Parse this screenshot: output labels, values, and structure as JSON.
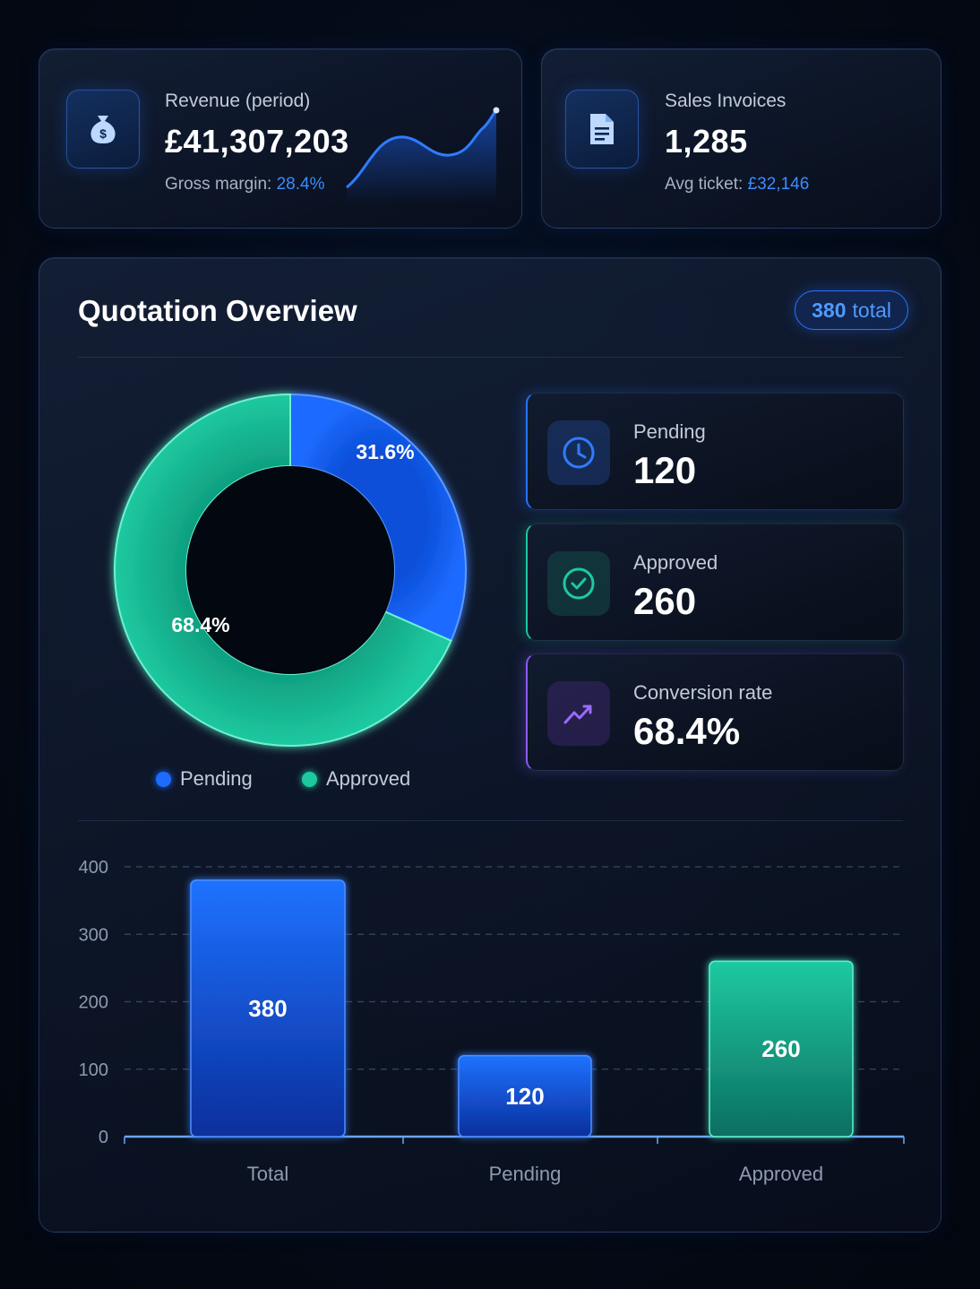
{
  "revenue_card": {
    "label": "Revenue (period)",
    "value": "£41,307,203",
    "sub_label": "Gross margin:",
    "sub_value": "28.4%",
    "icon": "money-bag-icon"
  },
  "invoices_card": {
    "label": "Sales Invoices",
    "value": "1,285",
    "sub_label": "Avg ticket:",
    "sub_value": "£32,146",
    "icon": "document-icon"
  },
  "overview": {
    "title": "Quotation Overview",
    "badge_count": "380",
    "badge_suffix": "total",
    "stats": [
      {
        "label": "Pending",
        "value": "120",
        "icon": "clock-icon",
        "color": "#2a74ff"
      },
      {
        "label": "Approved",
        "value": "260",
        "icon": "check-circle-icon",
        "color": "#1ec9a0"
      },
      {
        "label": "Conversion rate",
        "value": "68.4%",
        "icon": "trend-up-icon",
        "color": "#8b5cf6"
      }
    ],
    "legend": [
      {
        "label": "Pending",
        "color": "#1e6bff"
      },
      {
        "label": "Approved",
        "color": "#1ec9a0"
      }
    ]
  },
  "colors": {
    "blue": "#1e6bff",
    "green": "#1ec9a0",
    "purple": "#8b5cf6",
    "accent_text": "#3b8cff"
  },
  "chart_data": [
    {
      "type": "pie",
      "variant": "donut",
      "categories": [
        "Pending",
        "Approved"
      ],
      "values": [
        120,
        260
      ],
      "labels": [
        "31.6%",
        "68.4%"
      ],
      "colors": [
        "#1e6bff",
        "#1ec9a0"
      ],
      "legend": "bottom"
    },
    {
      "type": "bar",
      "categories": [
        "Total",
        "Pending",
        "Approved"
      ],
      "values": [
        380,
        120,
        260
      ],
      "value_labels": [
        "380",
        "120",
        "260"
      ],
      "colors": [
        "#1e6bff",
        "#1e6bff",
        "#1ec9a0"
      ],
      "ylim": [
        0,
        400
      ],
      "yticks": [
        "0",
        "100",
        "200",
        "300",
        "400"
      ],
      "grid": true,
      "xlabel": "",
      "ylabel": ""
    }
  ]
}
